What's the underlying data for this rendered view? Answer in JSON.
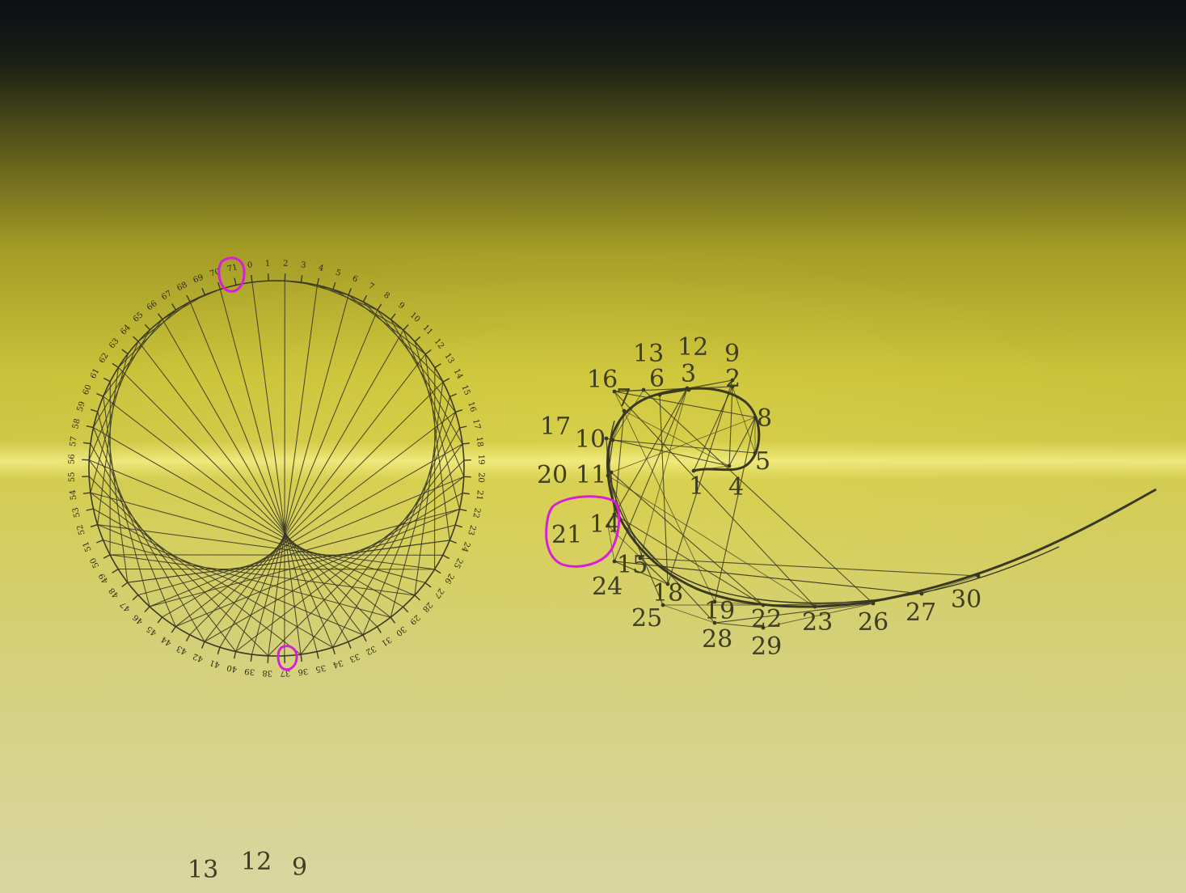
{
  "colors": {
    "paper_top": "#0c1016",
    "paper_mid": "#c8c23a",
    "paper_low": "#d6d394",
    "ink": "#3a3822",
    "highlight": "#d81fd8",
    "band": "#f6ef8a"
  },
  "circle_figure": {
    "point_count": 72,
    "tick_labels": [
      "0",
      "1",
      "2",
      "3",
      "4",
      "5",
      "6",
      "7",
      "8",
      "9",
      "10",
      "11",
      "12",
      "13",
      "14",
      "15",
      "16",
      "17",
      "18",
      "19",
      "20",
      "21",
      "22",
      "23",
      "24",
      "25",
      "26",
      "27",
      "28",
      "29",
      "30",
      "31",
      "32",
      "33",
      "34",
      "35",
      "36",
      "37",
      "38",
      "39",
      "40",
      "41",
      "42",
      "43",
      "44",
      "45",
      "46",
      "47",
      "48",
      "49",
      "50",
      "51",
      "52",
      "53",
      "54",
      "55",
      "56",
      "57",
      "58",
      "59",
      "60",
      "61",
      "62",
      "63",
      "64",
      "65",
      "66",
      "67",
      "68",
      "69",
      "70",
      "71"
    ]
  },
  "spiral_figure": {
    "labels": [
      {
        "text": "13"
      },
      {
        "text": "12"
      },
      {
        "text": "9"
      },
      {
        "text": "16"
      },
      {
        "text": "7"
      },
      {
        "text": "6"
      },
      {
        "text": "3"
      },
      {
        "text": "2"
      },
      {
        "text": "8"
      },
      {
        "text": "17"
      },
      {
        "text": "10"
      },
      {
        "text": "5"
      },
      {
        "text": "20"
      },
      {
        "text": "11"
      },
      {
        "text": "1"
      },
      {
        "text": "4"
      },
      {
        "text": "21"
      },
      {
        "text": "14"
      },
      {
        "text": "15"
      },
      {
        "text": "24"
      },
      {
        "text": "18"
      },
      {
        "text": "25"
      },
      {
        "text": "19"
      },
      {
        "text": "22"
      },
      {
        "text": "23"
      },
      {
        "text": "26"
      },
      {
        "text": "27"
      },
      {
        "text": "30"
      },
      {
        "text": "28"
      },
      {
        "text": "29"
      }
    ]
  },
  "next_page_peek": [
    "13",
    "12",
    "9"
  ],
  "highlights": [
    "circle-top-mark",
    "circle-bottom-mark",
    "spiral-21-14-mark"
  ]
}
